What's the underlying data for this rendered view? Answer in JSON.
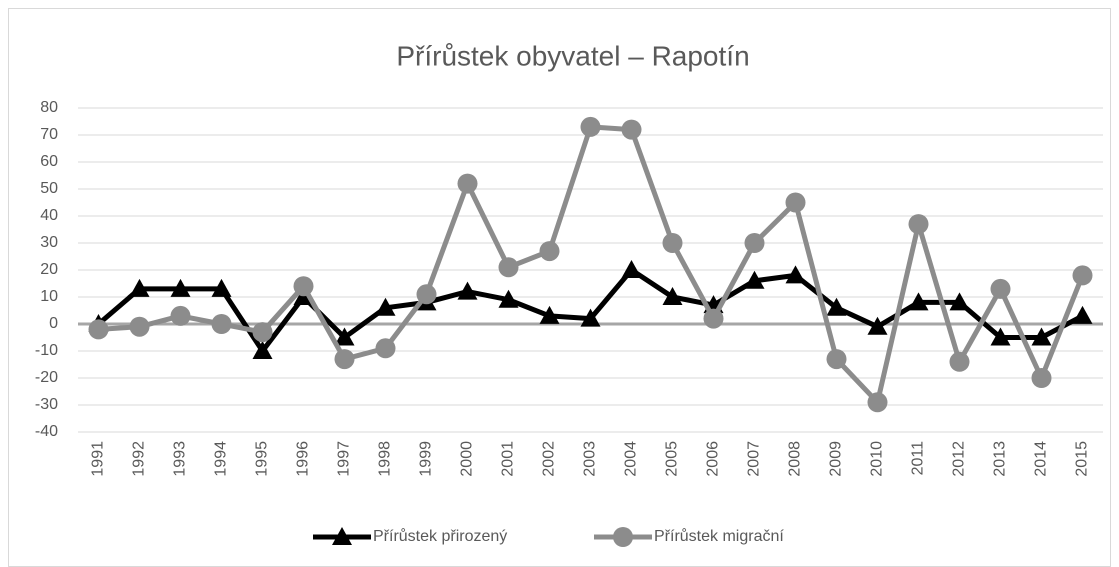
{
  "chart_data": {
    "type": "line",
    "title": "Přírůstek obyvatel – Rapotín",
    "categories": [
      "1991",
      "1992",
      "1993",
      "1994",
      "1995",
      "1996",
      "1997",
      "1998",
      "1999",
      "2000",
      "2001",
      "2002",
      "2003",
      "2004",
      "2005",
      "2006",
      "2007",
      "2008",
      "2009",
      "2010",
      "2011",
      "2012",
      "2013",
      "2014",
      "2015"
    ],
    "series": [
      {
        "name": "Přírůstek přirozený",
        "color": "#000000",
        "marker": "triangle",
        "values": [
          0,
          13,
          13,
          13,
          -10,
          10,
          -5,
          6,
          8,
          12,
          9,
          3,
          2,
          20,
          10,
          7,
          16,
          18,
          6,
          -1,
          8,
          8,
          -5,
          -5,
          3
        ]
      },
      {
        "name": "Přírůstek migrační",
        "color": "#8c8c8c",
        "marker": "circle",
        "values": [
          -2,
          -1,
          3,
          0,
          -3,
          14,
          -13,
          -9,
          11,
          52,
          21,
          27,
          73,
          72,
          30,
          2,
          30,
          45,
          -13,
          -29,
          37,
          -14,
          13,
          -20,
          18
        ]
      }
    ],
    "ylim": [
      -40,
      80
    ],
    "yticks": [
      -40,
      -30,
      -20,
      -10,
      0,
      10,
      20,
      30,
      40,
      50,
      60,
      70,
      80
    ],
    "grid": true,
    "legend": "bottom"
  }
}
